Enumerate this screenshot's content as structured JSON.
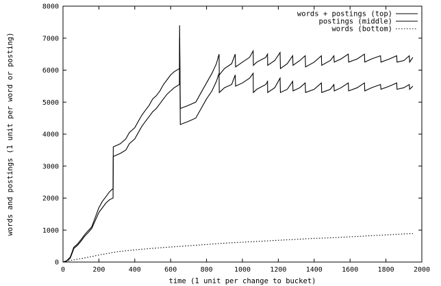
{
  "chart_data": {
    "type": "line",
    "title": "",
    "xlabel": "time (1 unit per change to bucket)",
    "ylabel": "words and postings (1 unit per word or posting)",
    "xlim": [
      0,
      2000
    ],
    "ylim": [
      0,
      8000
    ],
    "x_ticks": [
      0,
      200,
      400,
      600,
      800,
      1000,
      1200,
      1400,
      1600,
      1800,
      2000
    ],
    "y_ticks": [
      0,
      1000,
      2000,
      3000,
      4000,
      5000,
      6000,
      7000,
      8000
    ],
    "grid": false,
    "legend_position": "top-right",
    "series": [
      {
        "name": "words + postings (top)",
        "style": "solid",
        "color": "#000000",
        "points": [
          [
            0,
            0
          ],
          [
            20,
            40
          ],
          [
            40,
            150
          ],
          [
            50,
            300
          ],
          [
            60,
            460
          ],
          [
            80,
            560
          ],
          [
            100,
            700
          ],
          [
            120,
            850
          ],
          [
            140,
            980
          ],
          [
            160,
            1100
          ],
          [
            180,
            1400
          ],
          [
            200,
            1700
          ],
          [
            220,
            1900
          ],
          [
            240,
            2050
          ],
          [
            260,
            2200
          ],
          [
            279,
            2300
          ],
          [
            280,
            3600
          ],
          [
            320,
            3700
          ],
          [
            350,
            3850
          ],
          [
            370,
            4050
          ],
          [
            400,
            4200
          ],
          [
            420,
            4400
          ],
          [
            440,
            4600
          ],
          [
            460,
            4750
          ],
          [
            480,
            4900
          ],
          [
            500,
            5100
          ],
          [
            520,
            5200
          ],
          [
            540,
            5350
          ],
          [
            560,
            5550
          ],
          [
            580,
            5700
          ],
          [
            600,
            5850
          ],
          [
            620,
            5950
          ],
          [
            649,
            6050
          ],
          [
            650,
            7400
          ],
          [
            654,
            4800
          ],
          [
            700,
            4900
          ],
          [
            740,
            5000
          ],
          [
            770,
            5300
          ],
          [
            800,
            5600
          ],
          [
            830,
            5900
          ],
          [
            855,
            6200
          ],
          [
            870,
            6500
          ],
          [
            871,
            5850
          ],
          [
            900,
            6050
          ],
          [
            940,
            6200
          ],
          [
            960,
            6500
          ],
          [
            962,
            6100
          ],
          [
            1000,
            6250
          ],
          [
            1040,
            6400
          ],
          [
            1060,
            6600
          ],
          [
            1061,
            6150
          ],
          [
            1080,
            6250
          ],
          [
            1130,
            6400
          ],
          [
            1140,
            6500
          ],
          [
            1141,
            6150
          ],
          [
            1180,
            6300
          ],
          [
            1210,
            6550
          ],
          [
            1212,
            6050
          ],
          [
            1250,
            6200
          ],
          [
            1280,
            6450
          ],
          [
            1282,
            6150
          ],
          [
            1320,
            6300
          ],
          [
            1350,
            6450
          ],
          [
            1352,
            6100
          ],
          [
            1400,
            6250
          ],
          [
            1440,
            6450
          ],
          [
            1442,
            6150
          ],
          [
            1490,
            6300
          ],
          [
            1510,
            6450
          ],
          [
            1512,
            6250
          ],
          [
            1550,
            6350
          ],
          [
            1590,
            6500
          ],
          [
            1592,
            6250
          ],
          [
            1640,
            6350
          ],
          [
            1680,
            6500
          ],
          [
            1682,
            6250
          ],
          [
            1720,
            6350
          ],
          [
            1770,
            6450
          ],
          [
            1772,
            6250
          ],
          [
            1820,
            6350
          ],
          [
            1860,
            6450
          ],
          [
            1862,
            6250
          ],
          [
            1900,
            6300
          ],
          [
            1930,
            6450
          ],
          [
            1932,
            6250
          ],
          [
            1950,
            6400
          ]
        ]
      },
      {
        "name": "postings (middle)",
        "style": "solid",
        "color": "#000000",
        "points": [
          [
            0,
            0
          ],
          [
            20,
            30
          ],
          [
            40,
            120
          ],
          [
            50,
            260
          ],
          [
            60,
            420
          ],
          [
            80,
            520
          ],
          [
            100,
            650
          ],
          [
            120,
            800
          ],
          [
            140,
            920
          ],
          [
            160,
            1050
          ],
          [
            180,
            1300
          ],
          [
            200,
            1550
          ],
          [
            220,
            1700
          ],
          [
            240,
            1850
          ],
          [
            260,
            1950
          ],
          [
            279,
            2000
          ],
          [
            280,
            3300
          ],
          [
            320,
            3400
          ],
          [
            350,
            3500
          ],
          [
            370,
            3700
          ],
          [
            400,
            3850
          ],
          [
            420,
            4050
          ],
          [
            440,
            4250
          ],
          [
            460,
            4400
          ],
          [
            480,
            4550
          ],
          [
            500,
            4700
          ],
          [
            520,
            4800
          ],
          [
            540,
            4950
          ],
          [
            560,
            5100
          ],
          [
            580,
            5250
          ],
          [
            600,
            5350
          ],
          [
            620,
            5450
          ],
          [
            649,
            5550
          ],
          [
            650,
            7000
          ],
          [
            654,
            4300
          ],
          [
            700,
            4400
          ],
          [
            740,
            4500
          ],
          [
            770,
            4800
          ],
          [
            800,
            5100
          ],
          [
            830,
            5350
          ],
          [
            855,
            5650
          ],
          [
            870,
            5900
          ],
          [
            871,
            5300
          ],
          [
            900,
            5450
          ],
          [
            940,
            5550
          ],
          [
            960,
            5850
          ],
          [
            962,
            5500
          ],
          [
            1000,
            5600
          ],
          [
            1040,
            5750
          ],
          [
            1060,
            5900
          ],
          [
            1061,
            5300
          ],
          [
            1080,
            5400
          ],
          [
            1130,
            5550
          ],
          [
            1140,
            5650
          ],
          [
            1141,
            5300
          ],
          [
            1180,
            5450
          ],
          [
            1210,
            5750
          ],
          [
            1212,
            5300
          ],
          [
            1250,
            5400
          ],
          [
            1280,
            5650
          ],
          [
            1282,
            5350
          ],
          [
            1320,
            5450
          ],
          [
            1350,
            5600
          ],
          [
            1352,
            5300
          ],
          [
            1400,
            5400
          ],
          [
            1440,
            5600
          ],
          [
            1442,
            5300
          ],
          [
            1490,
            5400
          ],
          [
            1510,
            5550
          ],
          [
            1512,
            5350
          ],
          [
            1550,
            5450
          ],
          [
            1590,
            5600
          ],
          [
            1592,
            5350
          ],
          [
            1640,
            5450
          ],
          [
            1680,
            5600
          ],
          [
            1682,
            5350
          ],
          [
            1720,
            5450
          ],
          [
            1770,
            5550
          ],
          [
            1772,
            5400
          ],
          [
            1820,
            5500
          ],
          [
            1860,
            5600
          ],
          [
            1862,
            5400
          ],
          [
            1900,
            5450
          ],
          [
            1930,
            5550
          ],
          [
            1932,
            5400
          ],
          [
            1950,
            5500
          ]
        ]
      },
      {
        "name": "words (bottom)",
        "style": "dotted",
        "color": "#000000",
        "points": [
          [
            0,
            0
          ],
          [
            50,
            60
          ],
          [
            100,
            110
          ],
          [
            150,
            160
          ],
          [
            200,
            220
          ],
          [
            250,
            270
          ],
          [
            300,
            320
          ],
          [
            400,
            380
          ],
          [
            500,
            430
          ],
          [
            600,
            470
          ],
          [
            700,
            510
          ],
          [
            800,
            550
          ],
          [
            900,
            590
          ],
          [
            1000,
            620
          ],
          [
            1100,
            650
          ],
          [
            1200,
            680
          ],
          [
            1300,
            710
          ],
          [
            1400,
            740
          ],
          [
            1500,
            760
          ],
          [
            1600,
            790
          ],
          [
            1700,
            820
          ],
          [
            1800,
            850
          ],
          [
            1900,
            880
          ],
          [
            1950,
            890
          ]
        ]
      }
    ]
  }
}
